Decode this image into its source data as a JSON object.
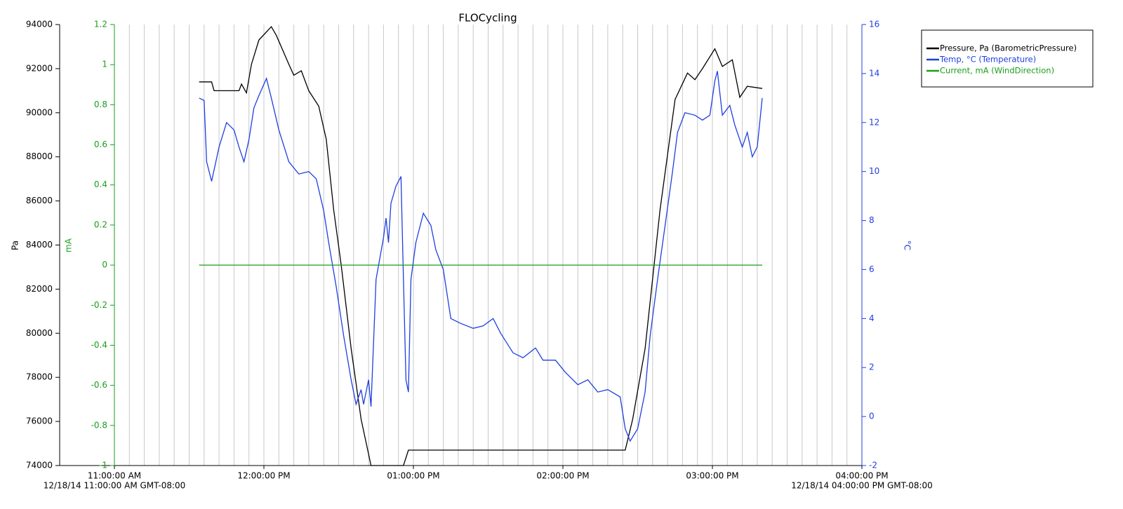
{
  "chart_data": {
    "type": "line",
    "title": "FLOCycling",
    "ylabel": "Pa",
    "y3label": "mA",
    "y2label": "°C",
    "xlim": [
      "11:00",
      "16:00"
    ],
    "xticks": [
      {
        "value": "11:00",
        "label": "11:00:00 AM"
      },
      {
        "value": "12:00",
        "label": "12:00:00 PM"
      },
      {
        "value": "13:00",
        "label": "01:00:00 PM"
      },
      {
        "value": "14:00",
        "label": "02:00:00 PM"
      },
      {
        "value": "15:00",
        "label": "03:00:00 PM"
      },
      {
        "value": "16:00",
        "label": "04:00:00 PM"
      }
    ],
    "x_range_labels": [
      "12/18/14 11:00:00 AM GMT-08:00",
      "12/18/14 04:00:00 PM GMT-08:00"
    ],
    "ylim": [
      74000,
      94000
    ],
    "yticks": [
      74000,
      76000,
      78000,
      80000,
      82000,
      84000,
      86000,
      88000,
      90000,
      92000,
      94000
    ],
    "y3lim": [
      -1,
      1.2
    ],
    "y3ticks": [
      -1,
      -0.8,
      -0.6,
      -0.4,
      -0.2,
      0,
      0.2,
      0.4,
      0.6,
      0.8,
      1,
      1.2
    ],
    "y2lim": [
      -2,
      16
    ],
    "y2ticks": [
      -2,
      0,
      2,
      4,
      6,
      8,
      10,
      12,
      14,
      16
    ],
    "grid": true,
    "legend": "right",
    "series": [
      {
        "name": "Pressure, Pa (BarometricPressure)",
        "color": "#000000",
        "axis": "y",
        "x": [
          "11:34",
          "11:39",
          "11:40",
          "11:50",
          "11:51",
          "11:53",
          "11:55",
          "11:58",
          "12:03",
          "12:05",
          "12:10",
          "12:12",
          "12:15",
          "12:18",
          "12:22",
          "12:25",
          "12:28",
          "12:31",
          "12:35",
          "12:39",
          "12:43",
          "12:56",
          "12:58",
          "14:25",
          "14:28",
          "14:33",
          "14:39",
          "14:45",
          "14:50",
          "14:53",
          "14:56",
          "15:01",
          "15:04",
          "15:08",
          "15:11",
          "15:14",
          "15:20"
        ],
        "values": [
          91400,
          91400,
          91000,
          91000,
          91300,
          90900,
          92200,
          93300,
          93900,
          93500,
          92200,
          91700,
          91900,
          91000,
          90300,
          88800,
          85600,
          83100,
          79300,
          76100,
          74000,
          74000,
          74700,
          74700,
          76100,
          79300,
          85600,
          90600,
          91800,
          91500,
          92000,
          92900,
          92100,
          92400,
          90700,
          91200,
          91100
        ]
      },
      {
        "name": "Temp, °C (Temperature)",
        "color": "#1f3fe0",
        "axis": "y2",
        "x": [
          "11:34",
          "11:36",
          "11:37",
          "11:39",
          "11:42",
          "11:45",
          "11:48",
          "11:50",
          "11:52",
          "11:54",
          "11:56",
          "11:58",
          "12:01",
          "12:03",
          "12:06",
          "12:10",
          "12:14",
          "12:18",
          "12:21",
          "12:24",
          "12:26",
          "12:29",
          "12:32",
          "12:35",
          "12:37",
          "12:39",
          "12:40",
          "12:42",
          "12:43",
          "12:45",
          "12:48",
          "12:49",
          "12:50",
          "12:51",
          "12:53",
          "12:55",
          "12:56",
          "12:57",
          "12:58",
          "12:59",
          "13:01",
          "13:04",
          "13:07",
          "13:09",
          "13:12",
          "13:15",
          "13:19",
          "13:24",
          "13:28",
          "13:32",
          "13:35",
          "13:40",
          "13:44",
          "13:49",
          "13:52",
          "13:57",
          "14:01",
          "14:06",
          "14:10",
          "14:14",
          "14:18",
          "14:23",
          "14:25",
          "14:27",
          "14:30",
          "14:33",
          "14:35",
          "14:38",
          "14:41",
          "14:44",
          "14:46",
          "14:49",
          "14:53",
          "14:56",
          "14:59",
          "15:01",
          "15:02",
          "15:04",
          "15:07",
          "15:09",
          "15:12",
          "15:14",
          "15:16",
          "15:18",
          "15:20"
        ],
        "values": [
          13.0,
          12.9,
          10.4,
          9.6,
          11.0,
          12.0,
          11.7,
          11.0,
          10.4,
          11.3,
          12.6,
          13.1,
          13.8,
          13.0,
          11.7,
          10.4,
          9.9,
          10.0,
          9.7,
          8.4,
          7.1,
          5.3,
          3.3,
          1.5,
          0.5,
          1.1,
          0.5,
          1.5,
          0.4,
          5.6,
          7.3,
          8.1,
          7.1,
          8.7,
          9.4,
          9.8,
          5.6,
          1.5,
          1.0,
          5.6,
          7.1,
          8.3,
          7.8,
          6.8,
          6.0,
          4.0,
          3.8,
          3.6,
          3.7,
          4.0,
          3.4,
          2.6,
          2.4,
          2.8,
          2.3,
          2.3,
          1.8,
          1.3,
          1.5,
          1.0,
          1.1,
          0.8,
          -0.5,
          -1.0,
          -0.5,
          1.0,
          3.3,
          5.6,
          7.8,
          10.0,
          11.6,
          12.4,
          12.3,
          12.1,
          12.3,
          13.7,
          14.1,
          12.3,
          12.7,
          11.9,
          11.0,
          11.6,
          10.6,
          11.0,
          13.0
        ]
      },
      {
        "name": "Current, mA (WindDirection)",
        "color": "#1a9e1a",
        "axis": "y3",
        "x": [
          "11:34",
          "15:20"
        ],
        "values": [
          0,
          0
        ]
      }
    ]
  }
}
